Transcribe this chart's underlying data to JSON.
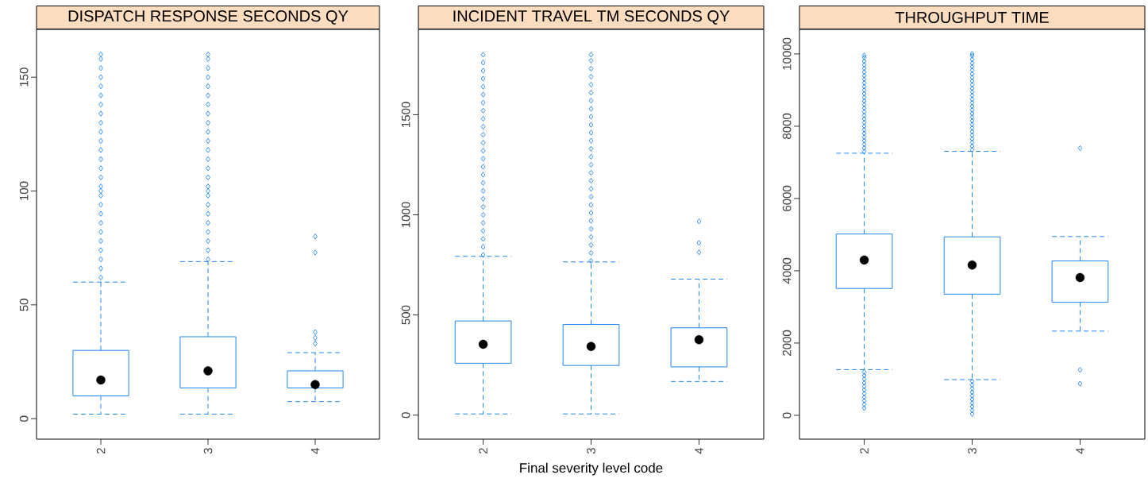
{
  "chart_data": [
    {
      "type": "box",
      "title": "DISPATCH RESPONSE SECONDS QY",
      "categories": [
        "2",
        "3",
        "4"
      ],
      "color": "#1e88f0",
      "marker": "diamond",
      "ylim": [
        -9,
        171
      ],
      "yticks": [
        0,
        50,
        100,
        150
      ],
      "boxes": [
        {
          "low": 2,
          "q1": 10,
          "median": 17,
          "q3": 30,
          "high": 60,
          "outliers": [
            62,
            66,
            70,
            74,
            78,
            82,
            86,
            90,
            94,
            98,
            100,
            102,
            106,
            110,
            114,
            118,
            122,
            126,
            130,
            134,
            138,
            142,
            146,
            150,
            154,
            158,
            160
          ]
        },
        {
          "low": 2,
          "q1": 13.5,
          "median": 21,
          "q3": 36,
          "high": 69,
          "outliers": [
            70,
            74,
            78,
            82,
            86,
            90,
            94,
            98,
            100,
            102,
            106,
            110,
            114,
            118,
            122,
            126,
            130,
            134,
            138,
            142,
            146,
            150,
            154,
            158,
            160
          ]
        },
        {
          "low": 7.5,
          "q1": 13.5,
          "median": 15,
          "q3": 21,
          "high": 29,
          "outliers": [
            33,
            35.5,
            38,
            73,
            80
          ]
        }
      ]
    },
    {
      "type": "box",
      "title": "INCIDENT TRAVEL TM SECONDS QY",
      "xlabel": "Final severity level code",
      "categories": [
        "2",
        "3",
        "4"
      ],
      "color": "#1e88f0",
      "marker": "diamond",
      "ylim": [
        -120,
        1926
      ],
      "yticks": [
        0,
        500,
        1000,
        1500
      ],
      "boxes": [
        {
          "low": 6,
          "q1": 259,
          "median": 354,
          "q3": 470,
          "high": 793,
          "outliers": [
            800,
            840,
            880,
            920,
            960,
            1000,
            1040,
            1080,
            1120,
            1160,
            1200,
            1240,
            1280,
            1320,
            1360,
            1400,
            1440,
            1480,
            1520,
            1560,
            1600,
            1640,
            1680,
            1720,
            1760,
            1800
          ]
        },
        {
          "low": 6,
          "q1": 248,
          "median": 343,
          "q3": 453,
          "high": 765,
          "outliers": [
            770,
            810,
            850,
            890,
            930,
            970,
            1010,
            1050,
            1090,
            1130,
            1170,
            1210,
            1250,
            1290,
            1330,
            1370,
            1410,
            1450,
            1490,
            1530,
            1570,
            1610,
            1650,
            1690,
            1730,
            1770,
            1800
          ]
        },
        {
          "low": 168,
          "q1": 241,
          "median": 377,
          "q3": 436,
          "high": 679,
          "outliers": [
            813,
            860,
            967
          ]
        }
      ]
    },
    {
      "type": "box",
      "title": "THROUGHPUT TIME",
      "categories": [
        "2",
        "3",
        "4"
      ],
      "color": "#1e88f0",
      "marker": "diamond",
      "ylim": [
        -660,
        10680
      ],
      "yticks": [
        0,
        2000,
        4000,
        6000,
        8000,
        10000
      ],
      "boxes": [
        {
          "low": 1265,
          "q1": 3510,
          "median": 4298,
          "q3": 5017,
          "high": 7253,
          "outliers": [
            200,
            300,
            400,
            500,
            600,
            700,
            800,
            900,
            1000,
            1100,
            1200,
            7300,
            7400,
            7500,
            7600,
            7700,
            7800,
            7900,
            8000,
            8100,
            8200,
            8300,
            8400,
            8500,
            8600,
            8700,
            8800,
            8900,
            9000,
            9100,
            9200,
            9300,
            9400,
            9500,
            9600,
            9700,
            9800,
            9900,
            9960
          ]
        },
        {
          "low": 988,
          "q1": 3354,
          "median": 4160,
          "q3": 4939,
          "high": 7305,
          "outliers": [
            40,
            140,
            240,
            340,
            440,
            540,
            640,
            740,
            840,
            940,
            7350,
            7450,
            7550,
            7650,
            7750,
            7850,
            7950,
            8050,
            8150,
            8250,
            8350,
            8450,
            8550,
            8650,
            8750,
            8850,
            8950,
            9050,
            9150,
            9250,
            9350,
            9450,
            9550,
            9650,
            9750,
            9850,
            9950,
            10000
          ]
        },
        {
          "low": 2331,
          "q1": 3128,
          "median": 3813,
          "q3": 4272,
          "high": 4948,
          "outliers": [
            875,
            1257,
            7392
          ]
        }
      ]
    }
  ]
}
